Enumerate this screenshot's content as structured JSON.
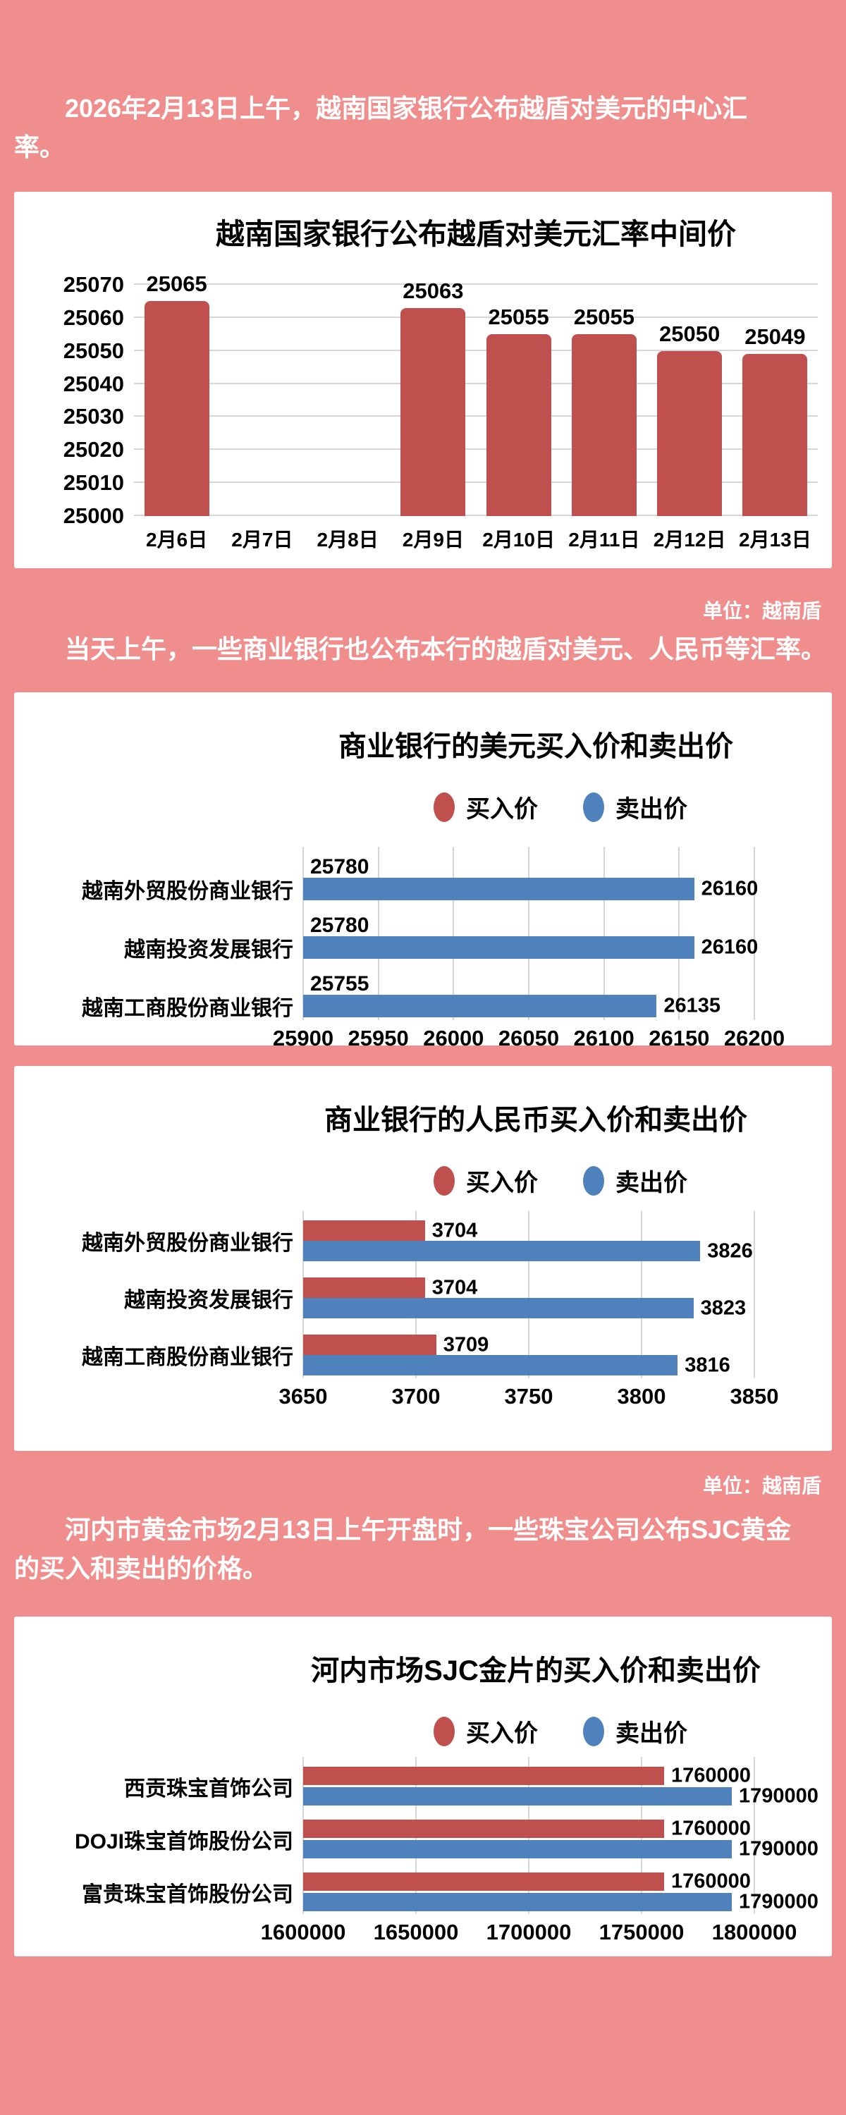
{
  "page": {
    "background_color": "#F08E8E",
    "intro": "2026年2月13日上午，越南国家银行公布越盾对美元的中心汇率。",
    "unit_label_1": "单位：越南盾",
    "para_commercial": "当天上午，一些商业银行也公布本行的越盾对美元、人民币等汇率。",
    "unit_label_2": "单位：越南盾",
    "para_gold": "河内市黄金市场2月13日上午开盘时，一些珠宝公司公布SJC黄金的买入和卖出的价格。"
  },
  "colors": {
    "background": "#F08E8E",
    "card": "#FFFFFF",
    "buy_red": "#C0504D",
    "sell_blue": "#4F81BD",
    "gridline": "#D6D6D6",
    "text_dark": "#000000",
    "text_light": "#FFFFFF"
  },
  "chart_data": [
    {
      "type": "bar",
      "title": "越南国家银行公布越盾对美元汇率中间价",
      "unit": "越南盾",
      "categories": [
        "2月6日",
        "2月7日",
        "2月8日",
        "2月9日",
        "2月10日",
        "2月11日",
        "2月12日",
        "2月13日"
      ],
      "values": [
        25065,
        null,
        null,
        25063,
        25055,
        25055,
        25050,
        25049
      ],
      "ylim": [
        25000,
        25070
      ],
      "yticks": [
        25000,
        25010,
        25020,
        25030,
        25040,
        25050,
        25060,
        25070
      ],
      "bar_color": "#C0504D",
      "grid": true,
      "legend_position": "none"
    },
    {
      "type": "bar-horizontal",
      "title": "商业银行的美元买入价和卖出价",
      "unit": "越南盾",
      "categories": [
        "越南外贸股份商业银行",
        "越南投资发展银行",
        "越南工商股份商业银行"
      ],
      "series": [
        {
          "name": "买入价",
          "color": "#C0504D",
          "values": [
            25780,
            25780,
            25755
          ]
        },
        {
          "name": "卖出价",
          "color": "#4F81BD",
          "values": [
            26160,
            26160,
            26135
          ]
        }
      ],
      "xlim": [
        25900,
        26200
      ],
      "xticks": [
        25900,
        25950,
        26000,
        26050,
        26100,
        26150,
        26200
      ],
      "grid": true,
      "legend_position": "top"
    },
    {
      "type": "bar-horizontal",
      "title": "商业银行的人民币买入价和卖出价",
      "unit": "越南盾",
      "categories": [
        "越南外贸股份商业银行",
        "越南投资发展银行",
        "越南工商股份商业银行"
      ],
      "series": [
        {
          "name": "买入价",
          "color": "#C0504D",
          "values": [
            3704,
            3704,
            3709
          ]
        },
        {
          "name": "卖出价",
          "color": "#4F81BD",
          "values": [
            3826,
            3823,
            3816
          ]
        }
      ],
      "xlim": [
        3650,
        3850
      ],
      "xticks": [
        3650,
        3700,
        3750,
        3800,
        3850
      ],
      "grid": true,
      "legend_position": "top"
    },
    {
      "type": "bar-horizontal",
      "title": "河内市场SJC金片的买入价和卖出价",
      "unit": "越南盾",
      "categories": [
        "西贡珠宝首饰公司",
        "DOJI珠宝首饰股份公司",
        "富贵珠宝首饰股份公司"
      ],
      "series": [
        {
          "name": "买入价",
          "color": "#C0504D",
          "values": [
            1760000,
            1760000,
            1760000
          ]
        },
        {
          "name": "卖出价",
          "color": "#4F81BD",
          "values": [
            1790000,
            1790000,
            1790000
          ]
        }
      ],
      "xlim": [
        1600000,
        1800000
      ],
      "xticks": [
        1600000,
        1650000,
        1700000,
        1750000,
        1800000
      ],
      "grid": true,
      "legend_position": "top"
    }
  ]
}
